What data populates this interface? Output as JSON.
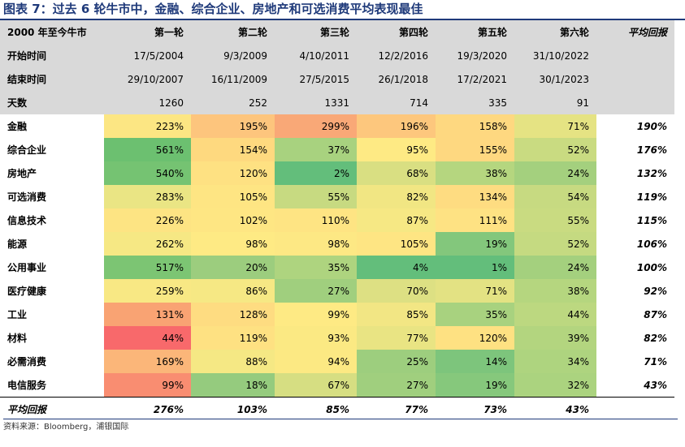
{
  "title": "图表 7：过去 6 轮牛市中，金融、综合企业、房地产和可选消费平均表现最佳",
  "header": {
    "label": "2000 年至今牛市",
    "columns": [
      "第一轮",
      "第二轮",
      "第三轮",
      "第四轮",
      "第五轮",
      "第六轮"
    ],
    "avg_label": "平均回报"
  },
  "info_rows": [
    {
      "label": "开始时间",
      "values": [
        "17/5/2004",
        "9/3/2009",
        "4/10/2011",
        "12/2/2016",
        "19/3/2020",
        "31/10/2022"
      ]
    },
    {
      "label": "结束时间",
      "values": [
        "29/10/2007",
        "16/11/2009",
        "27/5/2015",
        "26/1/2018",
        "17/2/2021",
        "30/1/2023"
      ]
    },
    {
      "label": "天数",
      "values": [
        "1260",
        "252",
        "1331",
        "714",
        "335",
        "91"
      ]
    }
  ],
  "sectors": [
    {
      "name": "金融",
      "values": [
        "223%",
        "195%",
        "299%",
        "196%",
        "158%",
        "71%"
      ],
      "colors": [
        "#fce683",
        "#fdc57d",
        "#f9a877",
        "#fdc77d",
        "#fed880",
        "#e5e383"
      ],
      "avg": "190%"
    },
    {
      "name": "综合企业",
      "values": [
        "561%",
        "154%",
        "37%",
        "95%",
        "155%",
        "52%"
      ],
      "colors": [
        "#6cc070",
        "#fed97f",
        "#a8d27f",
        "#feea84",
        "#fed880",
        "#c9db81"
      ],
      "avg": "176%"
    },
    {
      "name": "房地产",
      "values": [
        "540%",
        "120%",
        "2%",
        "68%",
        "38%",
        "24%"
      ],
      "colors": [
        "#75c372",
        "#fee182",
        "#63be7b",
        "#d9df82",
        "#b5d67f",
        "#a4d07e"
      ],
      "avg": "132%"
    },
    {
      "name": "可选消费",
      "values": [
        "283%",
        "105%",
        "55%",
        "82%",
        "134%",
        "54%"
      ],
      "colors": [
        "#eae584",
        "#fee583",
        "#c7da81",
        "#f1e683",
        "#fedc81",
        "#c7da81"
      ],
      "avg": "119%"
    },
    {
      "name": "信息技术",
      "values": [
        "226%",
        "102%",
        "110%",
        "87%",
        "111%",
        "55%"
      ],
      "colors": [
        "#fde483",
        "#fee683",
        "#fee483",
        "#f6e884",
        "#fee283",
        "#c9db81"
      ],
      "avg": "115%"
    },
    {
      "name": "能源",
      "values": [
        "262%",
        "98%",
        "98%",
        "105%",
        "19%",
        "52%"
      ],
      "colors": [
        "#f6e884",
        "#feea84",
        "#fde884",
        "#fee583",
        "#83c77c",
        "#c5da81"
      ],
      "avg": "106%"
    },
    {
      "name": "公用事业",
      "values": [
        "517%",
        "20%",
        "35%",
        "4%",
        "1%",
        "24%"
      ],
      "colors": [
        "#7cc573",
        "#9ccd7e",
        "#aed47f",
        "#63be7b",
        "#63be7b",
        "#a4d07e"
      ],
      "avg": "100%"
    },
    {
      "name": "医疗健康",
      "values": [
        "259%",
        "86%",
        "27%",
        "70%",
        "71%",
        "38%"
      ],
      "colors": [
        "#f8e884",
        "#f6e884",
        "#a0cf7e",
        "#dde083",
        "#e3e283",
        "#b5d67f"
      ],
      "avg": "92%"
    },
    {
      "name": "工业",
      "values": [
        "131%",
        "128%",
        "99%",
        "85%",
        "35%",
        "44%"
      ],
      "colors": [
        "#f9a373",
        "#fedc81",
        "#feea84",
        "#f2e684",
        "#a8d27f",
        "#bcd880"
      ],
      "avg": "87%"
    },
    {
      "name": "材料",
      "values": [
        "44%",
        "119%",
        "93%",
        "77%",
        "120%",
        "39%"
      ],
      "colors": [
        "#f8696b",
        "#fee182",
        "#fbe983",
        "#e9e483",
        "#fee182",
        "#b3d57f"
      ],
      "avg": "82%"
    },
    {
      "name": "必需消费",
      "values": [
        "169%",
        "88%",
        "94%",
        "25%",
        "14%",
        "34%"
      ],
      "colors": [
        "#fbb679",
        "#f5e884",
        "#fce983",
        "#9dce7e",
        "#7dc57c",
        "#aed47f"
      ],
      "avg": "71%"
    },
    {
      "name": "电信服务",
      "values": [
        "99%",
        "18%",
        "67%",
        "27%",
        "19%",
        "32%"
      ],
      "colors": [
        "#f98d71",
        "#95cb7e",
        "#d6de82",
        "#a0cf7e",
        "#86c87c",
        "#abd37f"
      ],
      "avg": "43%"
    }
  ],
  "footer": {
    "label": "平均回报",
    "values": [
      "276%",
      "103%",
      "85%",
      "77%",
      "73%",
      "43%"
    ]
  },
  "source": "资料来源：Bloomberg，浦银国际"
}
